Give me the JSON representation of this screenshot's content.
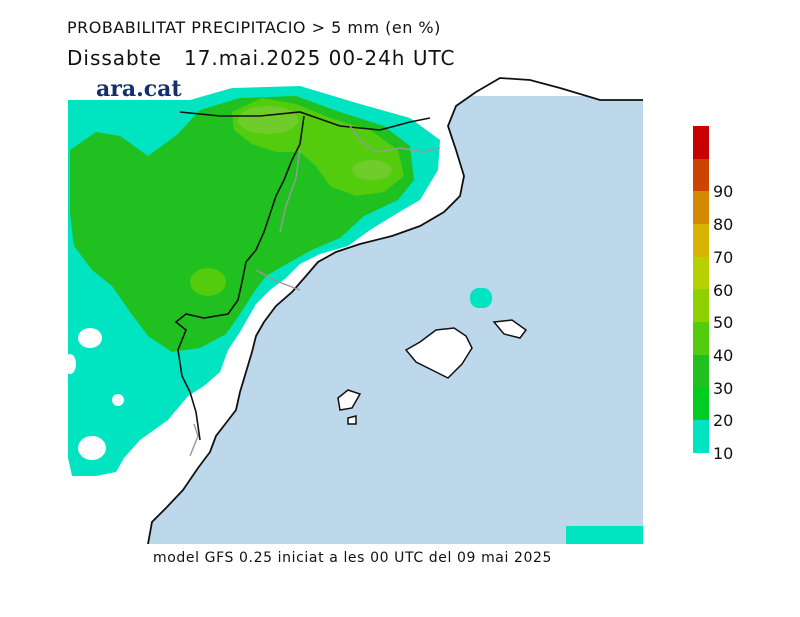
{
  "title": "PROBABILITAT PRECIPITACIO > 5 mm (en %)",
  "subtitle": "Dissabte   17.mai.2025 00-24h UTC",
  "brand": "ara.cat",
  "footer": "model GFS 0.25 iniciat a les 00 UTC del 09 mai 2025",
  "colors": {
    "sea": "#bcd8ea",
    "land": "#ffffff",
    "c10": "#00e4c1",
    "c20": "#00cc22",
    "c30": "#21c021",
    "c40": "#53cc0e",
    "c50": "#8fd100",
    "c60": "#b6d000",
    "c70": "#d8b300",
    "c80": "#d48a00",
    "c90": "#cc4400",
    "c100": "#c80000"
  },
  "legend": {
    "labels": [
      "10",
      "20",
      "30",
      "40",
      "50",
      "60",
      "70",
      "80",
      "90"
    ],
    "swatches": [
      "#00e4c1",
      "#00cc22",
      "#21c021",
      "#53cc0e",
      "#8fd100",
      "#b6d000",
      "#d8b300",
      "#d48a00",
      "#cc4400",
      "#c80000"
    ]
  }
}
